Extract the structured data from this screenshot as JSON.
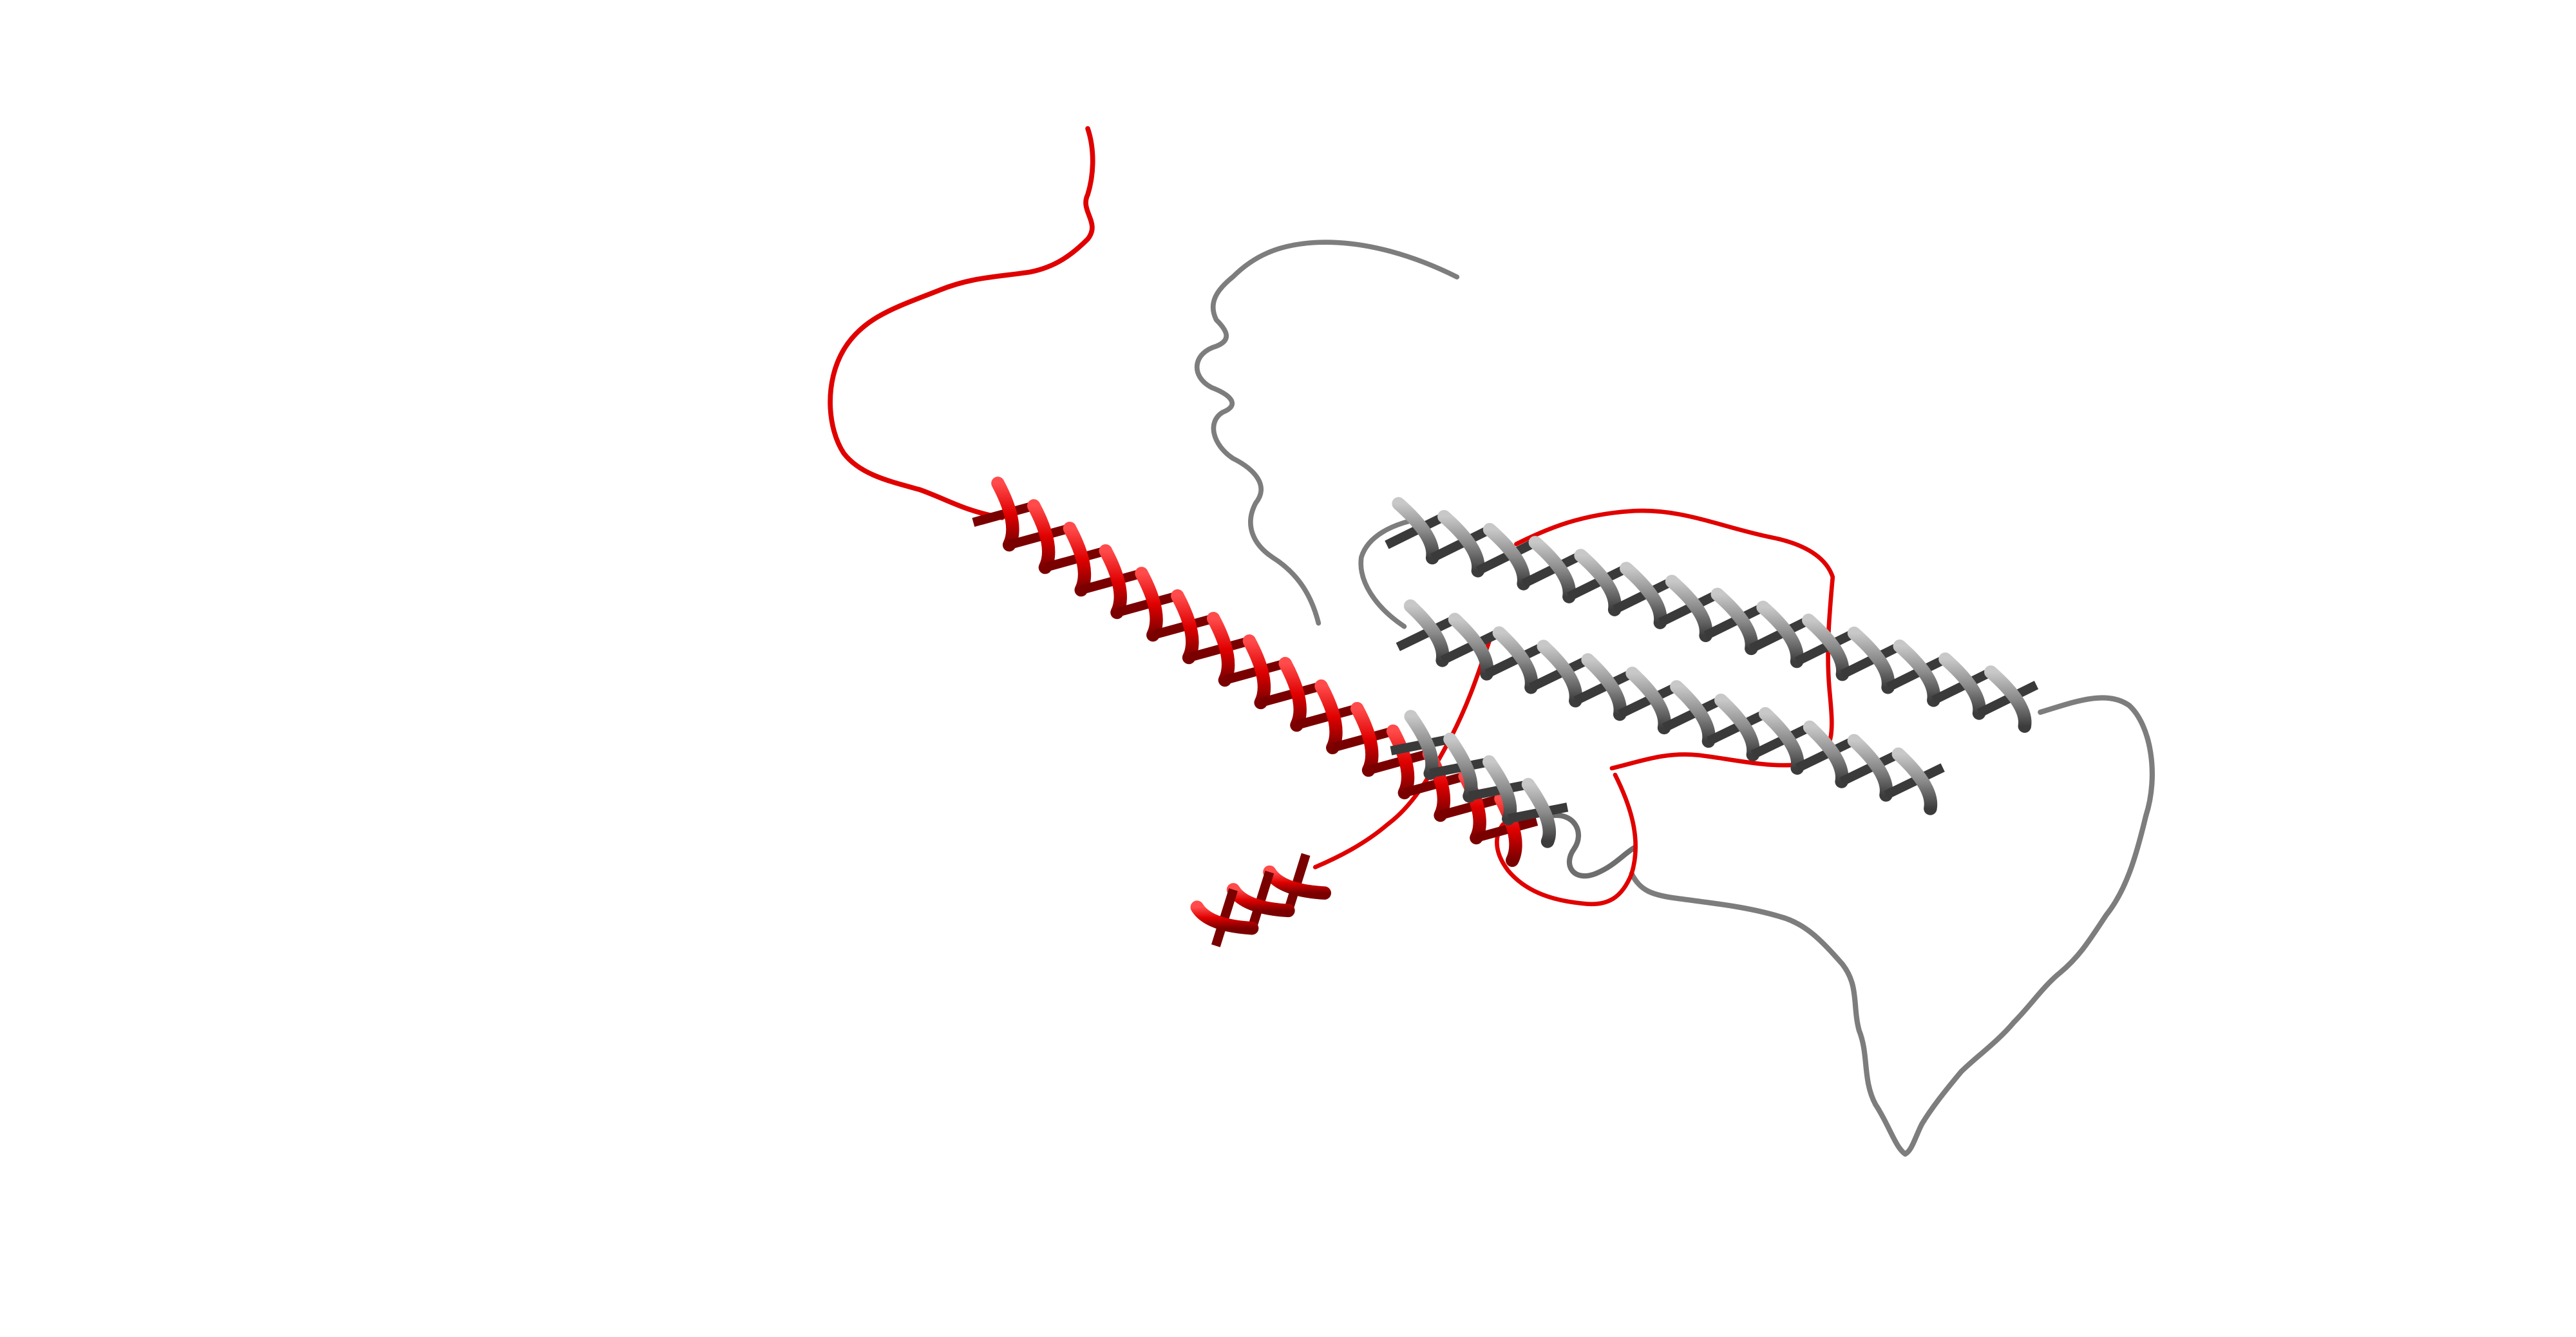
{
  "scene": {
    "background": "#ffffff",
    "subject": "protein-ribbon-structure",
    "chains": [
      {
        "id": "chain-red",
        "color": "#e8000b",
        "shade": "#8f0000"
      },
      {
        "id": "chain-gray",
        "color": "#8c8c8c",
        "shade": "#4a4a4a"
      }
    ]
  }
}
